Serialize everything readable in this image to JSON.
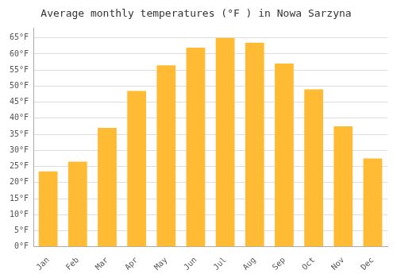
{
  "chart_data": {
    "type": "bar",
    "title": "Average monthly temperatures (°F ) in Nowa Sarzyna",
    "categories": [
      "Jan",
      "Feb",
      "Mar",
      "Apr",
      "May",
      "Jun",
      "Jul",
      "Aug",
      "Sep",
      "Oct",
      "Nov",
      "Dec"
    ],
    "values": [
      23.5,
      26.5,
      37.0,
      48.5,
      56.5,
      62.0,
      65.0,
      63.5,
      57.0,
      49.0,
      37.5,
      27.5
    ],
    "color": "#FFBB33",
    "ylim": [
      0,
      68
    ],
    "yticks": [
      {
        "value": 0,
        "label": "0°F"
      },
      {
        "value": 5,
        "label": "5°F"
      },
      {
        "value": 10,
        "label": "10°F"
      },
      {
        "value": 15,
        "label": "15°F"
      },
      {
        "value": 20,
        "label": "20°F"
      },
      {
        "value": 25,
        "label": "25°F"
      },
      {
        "value": 30,
        "label": "30°F"
      },
      {
        "value": 35,
        "label": "35°F"
      },
      {
        "value": 40,
        "label": "40°F"
      },
      {
        "value": 45,
        "label": "45°F"
      },
      {
        "value": 50,
        "label": "50°F"
      },
      {
        "value": 55,
        "label": "55°F"
      },
      {
        "value": 60,
        "label": "60°F"
      },
      {
        "value": 65,
        "label": "65°F"
      }
    ],
    "grid": true
  }
}
